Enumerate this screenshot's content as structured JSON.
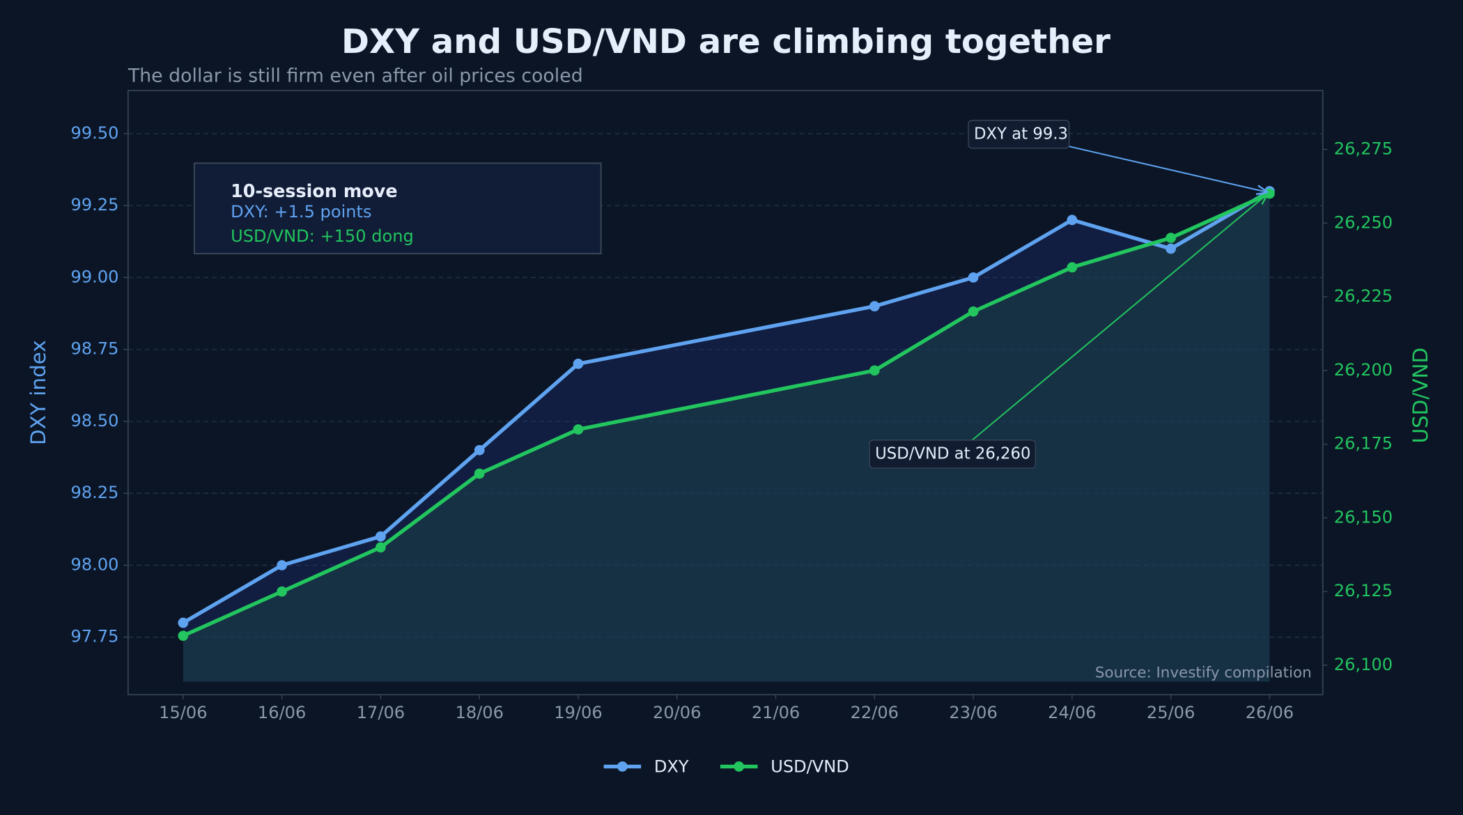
{
  "chart_data": {
    "type": "line",
    "title": "DXY and USD/VND are climbing together",
    "subtitle": "The dollar is still firm even after oil prices cooled",
    "y_label": "DXY index",
    "y2_label": "USD/VND",
    "x": [
      "15/06",
      "16/06",
      "17/06",
      "18/06",
      "19/06",
      "22/06",
      "23/06",
      "24/06",
      "25/06",
      "26/06"
    ],
    "xticks": [
      "15/06",
      "16/06",
      "17/06",
      "18/06",
      "19/06",
      "20/06",
      "21/06",
      "22/06",
      "23/06",
      "24/06",
      "25/06",
      "26/06"
    ],
    "series": [
      {
        "name": "DXY",
        "color": "#5fa3f0",
        "values": [
          97.8,
          98.0,
          98.1,
          98.4,
          98.7,
          98.9,
          99.0,
          99.2,
          99.1,
          99.3
        ]
      },
      {
        "name": "USD/VND",
        "color": "#22c55e",
        "axis": "y2",
        "values": [
          26110,
          26125,
          26140,
          26165,
          26180,
          26200,
          26220,
          26235,
          26245,
          26260
        ]
      }
    ],
    "ylim": [
      97.55,
      99.65
    ],
    "yticks": [
      97.75,
      {
        "value": 98.0,
        "label": "98.00"
      },
      98.25,
      {
        "value": 98.5,
        "label": "98.50"
      },
      98.75,
      {
        "value": 99.0,
        "label": "99.00"
      },
      99.25,
      {
        "value": 99.5,
        "label": "99.50"
      }
    ],
    "y2lim": [
      26090,
      26295
    ],
    "y2ticks": [
      {
        "value": 26100,
        "label": "26,100"
      },
      {
        "value": 26125,
        "label": "26,125"
      },
      {
        "value": 26150,
        "label": "26,150"
      },
      {
        "value": 26175,
        "label": "26,175"
      },
      {
        "value": 26200,
        "label": "26,200"
      },
      {
        "value": 26225,
        "label": "26,225"
      },
      {
        "value": 26250,
        "label": "26,250"
      },
      {
        "value": 26275,
        "label": "26,275"
      }
    ],
    "grid": true,
    "legend": "bottom",
    "info_box": {
      "title": "10-session move",
      "lines": [
        "DXY: +1.5 points",
        "USD/VND: +150 dong"
      ]
    },
    "annotations": [
      "DXY at 99.3",
      "USD/VND at 26,260"
    ],
    "source": "Source: Investify compilation"
  }
}
